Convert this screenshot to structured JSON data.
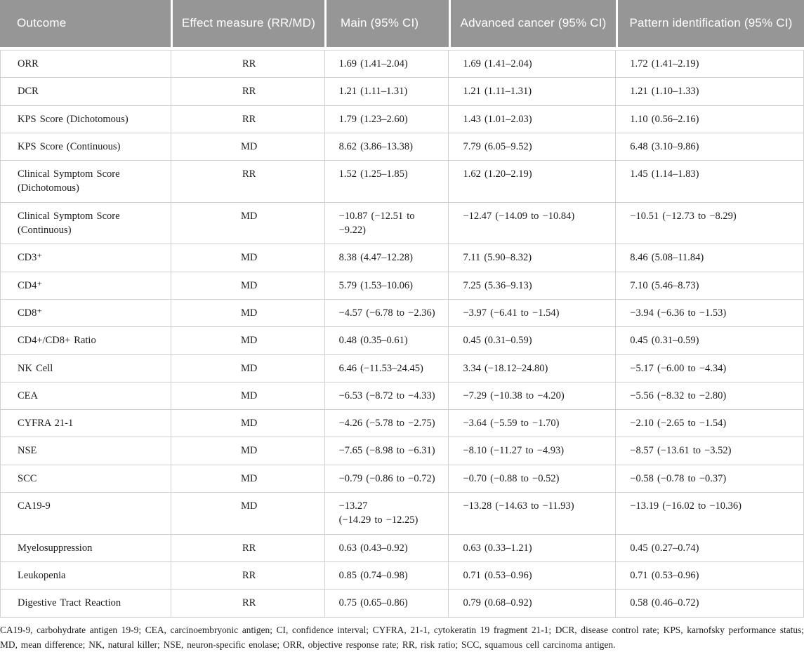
{
  "colors": {
    "header_bg": "#969696",
    "header_text": "#ffffff",
    "grid_line": "#d0d0d0",
    "section_line": "#9f9f9f",
    "body_text": "#1b1b1b"
  },
  "table": {
    "columns": [
      {
        "label": "Outcome"
      },
      {
        "label": "Effect measure (RR/MD)"
      },
      {
        "label": "Main (95% CI)"
      },
      {
        "label": "Advanced cancer (95% CI)"
      },
      {
        "label": "Pattern identification (95% CI)"
      }
    ],
    "rows": [
      {
        "outcome": "ORR",
        "measure": "RR",
        "main": "1.69 (1.41–2.04)",
        "advanced": "1.69 (1.41–2.04)",
        "pattern": "1.72 (1.41–2.19)",
        "section_start": false
      },
      {
        "outcome": "DCR",
        "measure": "RR",
        "main": "1.21 (1.11–1.31)",
        "advanced": "1.21 (1.11–1.31)",
        "pattern": "1.21 (1.10–1.33)",
        "section_start": false
      },
      {
        "outcome": "KPS Score (Dichotomous)",
        "measure": "RR",
        "main": "1.79 (1.23–2.60)",
        "advanced": "1.43 (1.01–2.03)",
        "pattern": "1.10 (0.56–2.16)",
        "section_start": false
      },
      {
        "outcome": "KPS Score (Continuous)",
        "measure": "MD",
        "main": "8.62 (3.86–13.38)",
        "advanced": "7.79 (6.05–9.52)",
        "pattern": "6.48 (3.10–9.86)",
        "section_start": false
      },
      {
        "outcome": "Clinical Symptom Score (Dichotomous)",
        "measure": "RR",
        "main": "1.52 (1.25–1.85)",
        "advanced": "1.62 (1.20–2.19)",
        "pattern": "1.45 (1.14–1.83)",
        "section_start": false
      },
      {
        "outcome": "Clinical Symptom Score (Continuous)",
        "measure": "MD",
        "main": "−10.87 (−12.51 to −9.22)",
        "advanced": "−12.47 (−14.09 to −10.84)",
        "pattern": "−10.51 (−12.73 to −8.29)",
        "section_start": false
      },
      {
        "outcome": "CD3⁺",
        "measure": "MD",
        "main": "8.38 (4.47–12.28)",
        "advanced": "7.11 (5.90–8.32)",
        "pattern": "8.46 (5.08–11.84)",
        "section_start": false
      },
      {
        "outcome": "CD4⁺",
        "measure": "MD",
        "main": "5.79 (1.53–10.06)",
        "advanced": "7.25 (5.36–9.13)",
        "pattern": "7.10 (5.46–8.73)",
        "section_start": false
      },
      {
        "outcome": "CD8⁺",
        "measure": "MD",
        "main": "−4.57 (−6.78 to −2.36)",
        "advanced": "−3.97 (−6.41 to −1.54)",
        "pattern": "−3.94 (−6.36 to −1.53)",
        "section_start": false
      },
      {
        "outcome": "CD4+/CD8+ Ratio",
        "measure": "MD",
        "main": "0.48 (0.35–0.61)",
        "advanced": "0.45 (0.31–0.59)",
        "pattern": "0.45 (0.31–0.59)",
        "section_start": false
      },
      {
        "outcome": "NK Cell",
        "measure": "MD",
        "main": "6.46 (−11.53–24.45)",
        "advanced": "3.34 (−18.12–24.80)",
        "pattern": "−5.17 (−6.00 to −4.34)",
        "section_start": false
      },
      {
        "outcome": "CEA",
        "measure": "MD",
        "main": "−6.53 (−8.72 to −4.33)",
        "advanced": "−7.29 (−10.38 to −4.20)",
        "pattern": "−5.56 (−8.32 to −2.80)",
        "section_start": false
      },
      {
        "outcome": "CYFRA 21-1",
        "measure": "MD",
        "main": "−4.26 (−5.78 to −2.75)",
        "advanced": "−3.64 (−5.59 to −1.70)",
        "pattern": "−2.10 (−2.65 to −1.54)",
        "section_start": false
      },
      {
        "outcome": "NSE",
        "measure": "MD",
        "main": "−7.65 (−8.98 to −6.31)",
        "advanced": "−8.10 (−11.27 to −4.93)",
        "pattern": "−8.57 (−13.61 to −3.52)",
        "section_start": false
      },
      {
        "outcome": "SCC",
        "measure": "MD",
        "main": "−0.79 (−0.86 to −0.72)",
        "advanced": "−0.70 (−0.88 to −0.52)",
        "pattern": "−0.58 (−0.78 to −0.37)",
        "section_start": false
      },
      {
        "outcome": "CA19-9",
        "measure": "MD",
        "main": "−13.27\n(−14.29 to −12.25)",
        "advanced": "−13.28 (−14.63 to −11.93)",
        "pattern": "−13.19 (−16.02 to −10.36)",
        "section_start": false
      },
      {
        "outcome": "Myelosuppression",
        "measure": "RR",
        "main": "0.63 (0.43–0.92)",
        "advanced": "0.63 (0.33–1.21)",
        "pattern": "0.45 (0.27–0.74)",
        "section_start": true
      },
      {
        "outcome": "Leukopenia",
        "measure": "RR",
        "main": "0.85 (0.74–0.98)",
        "advanced": "0.71 (0.53–0.96)",
        "pattern": "0.71 (0.53–0.96)",
        "section_start": false
      },
      {
        "outcome": "Digestive Tract Reaction",
        "measure": "RR",
        "main": "0.75 (0.65–0.86)",
        "advanced": "0.79 (0.68–0.92)",
        "pattern": "0.58 (0.46–0.72)",
        "section_start": false
      }
    ]
  },
  "footnote": "CA19-9, carbohydrate antigen 19-9; CEA, carcinoembryonic antigen; CI, confidence interval; CYFRA, 21-1, cytokeratin 19 fragment 21-1; DCR, disease control rate; KPS, karnofsky performance status; MD, mean difference; NK, natural killer; NSE, neuron-specific enolase; ORR, objective response rate; RR, risk ratio; SCC, squamous cell carcinoma antigen."
}
